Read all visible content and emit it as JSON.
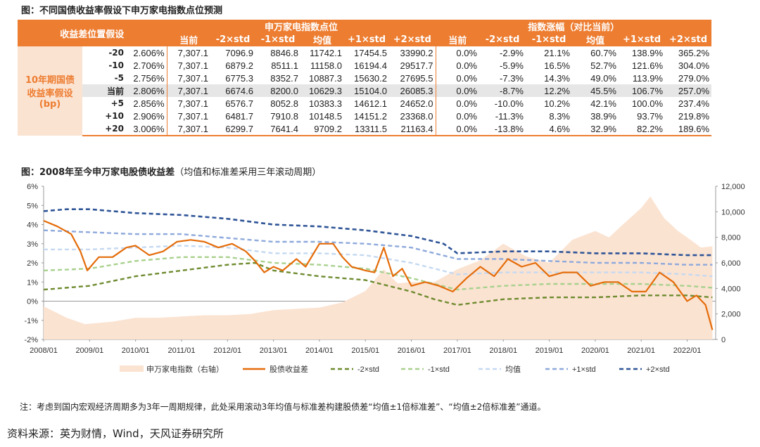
{
  "title1": "图：不同国债收益率假设下申万家电指数点位预测",
  "title2_bold": "图：2008年至今申万家电股债收益差",
  "title2_rest": "（均值和标准差采用三年滚动周期）",
  "table": {
    "corner": "收益差位置假设",
    "group1": "申万家电指数点位",
    "group2": "指数涨幅（对比当前）",
    "row_label": [
      "10年期国债",
      "收益率假设",
      "(bp)"
    ],
    "cols1": [
      "当前",
      "-2×std",
      "-1×std",
      "均值",
      "+1×std",
      "+2×std"
    ],
    "cols2": [
      "当前",
      "-2×std",
      "-1×std",
      "均值",
      "+1×std",
      "+2×std"
    ],
    "rows": [
      {
        "bp": "-20",
        "yield": "2.606%",
        "pts": [
          "7,307.1",
          "7096.9",
          "8846.8",
          "11742.1",
          "17454.5",
          "33990.2"
        ],
        "chg": [
          "0.0%",
          "-2.9%",
          "21.1%",
          "60.7%",
          "138.9%",
          "365.2%"
        ]
      },
      {
        "bp": "-10",
        "yield": "2.706%",
        "pts": [
          "7,307.1",
          "6879.2",
          "8511.1",
          "11158.0",
          "16194.4",
          "29517.7"
        ],
        "chg": [
          "0.0%",
          "-5.9%",
          "16.5%",
          "52.7%",
          "121.6%",
          "304.0%"
        ]
      },
      {
        "bp": "-5",
        "yield": "2.756%",
        "pts": [
          "7,307.1",
          "6775.3",
          "8352.7",
          "10887.3",
          "15630.2",
          "27695.5"
        ],
        "chg": [
          "0.0%",
          "-7.3%",
          "14.3%",
          "49.0%",
          "113.9%",
          "279.0%"
        ]
      },
      {
        "bp": "当前",
        "yield": "2.806%",
        "pts": [
          "7,307.1",
          "6674.6",
          "8200.0",
          "10629.3",
          "15104.0",
          "26085.3"
        ],
        "chg": [
          "0.0%",
          "-8.7%",
          "12.2%",
          "45.5%",
          "106.7%",
          "257.0%"
        ]
      },
      {
        "bp": "+5",
        "yield": "2.856%",
        "pts": [
          "7,307.1",
          "6576.7",
          "8052.8",
          "10383.3",
          "14612.1",
          "24652.0"
        ],
        "chg": [
          "0.0%",
          "-10.0%",
          "10.2%",
          "42.1%",
          "100.0%",
          "237.4%"
        ]
      },
      {
        "bp": "+10",
        "yield": "2.906%",
        "pts": [
          "7,307.1",
          "6481.7",
          "7910.8",
          "10148.5",
          "14151.2",
          "23368.0"
        ],
        "chg": [
          "0.0%",
          "-11.3%",
          "8.3%",
          "38.9%",
          "93.7%",
          "219.8%"
        ]
      },
      {
        "bp": "+20",
        "yield": "3.006%",
        "pts": [
          "7,307.1",
          "6299.7",
          "7641.4",
          "9709.2",
          "13311.5",
          "21163.4"
        ],
        "chg": [
          "0.0%",
          "-13.8%",
          "4.6%",
          "32.9%",
          "82.2%",
          "189.6%"
        ]
      }
    ]
  },
  "chart_data": {
    "type": "line",
    "x_ticks": [
      "2008/01",
      "2009/01",
      "2010/01",
      "2011/01",
      "2012/01",
      "2013/01",
      "2014/01",
      "2015/01",
      "2016/01",
      "2017/01",
      "2018/01",
      "2019/01",
      "2020/01",
      "2021/01",
      "2022/01"
    ],
    "y_left_ticks": [
      "6%",
      "5%",
      "4%",
      "3%",
      "2%",
      "1%",
      "0%",
      "-1%",
      "-2%"
    ],
    "y_right_ticks": [
      "12,000",
      "10,000",
      "8,000",
      "6,000",
      "4,000",
      "2,000",
      "0"
    ],
    "ylim_left": [
      -2,
      6
    ],
    "ylim_right": [
      0,
      12000
    ],
    "legend": [
      "申万家电指数（右轴）",
      "股债收益差",
      "-2×std",
      "-1×std",
      "均值",
      "+1×std",
      "+2×std"
    ],
    "colors": {
      "index": "#FBE3D2",
      "spread": "#E46C0A",
      "m2": "#6E8B2F",
      "m1": "#A9D18E",
      "mean": "#C5D9F1",
      "p1": "#8EA9DB",
      "p2": "#2F5597"
    },
    "series": [
      {
        "name": "申万家电指数（右轴）",
        "axis": "right",
        "x": [
          2008.0,
          2008.5,
          2008.9,
          2009.5,
          2010.0,
          2010.5,
          2011.0,
          2011.5,
          2012.0,
          2012.5,
          2013.0,
          2013.5,
          2014.0,
          2014.5,
          2015.0,
          2015.4,
          2015.7,
          2016.0,
          2016.5,
          2017.0,
          2017.5,
          2018.0,
          2018.5,
          2019.0,
          2019.5,
          2020.0,
          2020.3,
          2020.6,
          2021.0,
          2021.2,
          2021.5,
          2021.8,
          2022.0,
          2022.3,
          2022.55
        ],
        "values": [
          2600,
          1700,
          1200,
          1400,
          1700,
          1700,
          1800,
          1900,
          1900,
          2000,
          2300,
          2400,
          2500,
          2900,
          3800,
          5500,
          4400,
          4500,
          4500,
          5500,
          6200,
          7500,
          6500,
          6000,
          7800,
          8500,
          8000,
          9000,
          10300,
          11200,
          9500,
          8500,
          8000,
          7200,
          7300
        ]
      },
      {
        "name": "股债收益差",
        "axis": "left",
        "x": [
          2008.0,
          2008.3,
          2008.6,
          2008.8,
          2008.95,
          2009.2,
          2009.5,
          2009.8,
          2010.0,
          2010.3,
          2010.6,
          2010.9,
          2011.2,
          2011.5,
          2011.8,
          2012.1,
          2012.4,
          2012.6,
          2012.8,
          2013.0,
          2013.2,
          2013.5,
          2013.7,
          2014.0,
          2014.3,
          2014.5,
          2014.7,
          2015.0,
          2015.2,
          2015.4,
          2015.6,
          2015.8,
          2016.0,
          2016.3,
          2016.6,
          2016.9,
          2017.2,
          2017.5,
          2017.8,
          2018.1,
          2018.4,
          2018.7,
          2019.0,
          2019.3,
          2019.6,
          2019.9,
          2020.2,
          2020.5,
          2020.8,
          2021.1,
          2021.4,
          2021.7,
          2022.0,
          2022.2,
          2022.4,
          2022.55
        ],
        "values": [
          4.2,
          3.9,
          3.5,
          2.6,
          1.6,
          2.3,
          2.3,
          2.8,
          2.9,
          2.4,
          2.6,
          3.1,
          3.2,
          3.1,
          2.8,
          3.0,
          2.6,
          2.1,
          1.5,
          1.8,
          1.6,
          2.2,
          1.8,
          3.0,
          3.0,
          2.3,
          1.8,
          1.6,
          1.5,
          2.8,
          1.3,
          1.7,
          0.8,
          1.0,
          0.8,
          0.5,
          1.2,
          1.8,
          1.3,
          2.2,
          1.8,
          2.0,
          1.3,
          1.5,
          1.5,
          0.8,
          1.0,
          1.0,
          0.5,
          0.5,
          1.5,
          1.0,
          0.0,
          0.3,
          -0.2,
          -1.5
        ]
      },
      {
        "name": "-2×std",
        "axis": "left",
        "x": [
          2008.0,
          2009.0,
          2010.0,
          2011.0,
          2012.0,
          2012.6,
          2013.0,
          2014.0,
          2015.0,
          2016.0,
          2016.5,
          2017.0,
          2018.0,
          2019.0,
          2020.0,
          2021.0,
          2022.0,
          2022.55
        ],
        "values": [
          0.6,
          0.8,
          1.3,
          1.6,
          1.9,
          2.0,
          1.6,
          1.3,
          1.1,
          0.5,
          0.1,
          -0.2,
          0.1,
          0.2,
          0.2,
          0.3,
          0.3,
          0.2
        ]
      },
      {
        "name": "-1×std",
        "axis": "left",
        "x": [
          2008.0,
          2009.0,
          2010.0,
          2011.0,
          2012.0,
          2013.0,
          2014.0,
          2015.0,
          2016.0,
          2017.0,
          2018.0,
          2019.0,
          2020.0,
          2021.0,
          2022.0,
          2022.55
        ],
        "values": [
          1.6,
          1.7,
          2.1,
          2.3,
          2.3,
          2.0,
          1.9,
          1.7,
          1.2,
          0.6,
          0.8,
          0.9,
          0.9,
          0.9,
          0.8,
          0.7
        ]
      },
      {
        "name": "均值",
        "axis": "left",
        "x": [
          2008.0,
          2009.0,
          2010.0,
          2011.0,
          2012.0,
          2013.0,
          2014.0,
          2015.0,
          2016.0,
          2017.0,
          2018.0,
          2019.0,
          2020.0,
          2021.0,
          2022.0,
          2022.55
        ],
        "values": [
          2.7,
          2.7,
          2.8,
          2.9,
          2.8,
          2.5,
          2.5,
          2.4,
          2.0,
          1.4,
          1.5,
          1.5,
          1.5,
          1.5,
          1.4,
          1.3
        ]
      },
      {
        "name": "+1×std",
        "axis": "left",
        "x": [
          2008.0,
          2009.0,
          2010.0,
          2011.0,
          2012.0,
          2013.0,
          2014.0,
          2015.0,
          2016.0,
          2017.0,
          2018.0,
          2019.0,
          2020.0,
          2021.0,
          2022.0,
          2022.55
        ],
        "values": [
          3.7,
          3.6,
          3.5,
          3.5,
          3.3,
          3.1,
          3.1,
          3.0,
          2.8,
          2.2,
          2.2,
          2.1,
          2.0,
          2.0,
          1.9,
          1.9
        ]
      },
      {
        "name": "+2×std",
        "axis": "left",
        "x": [
          2008.0,
          2008.5,
          2009.0,
          2010.0,
          2011.0,
          2012.0,
          2013.0,
          2014.0,
          2015.0,
          2016.0,
          2016.7,
          2017.0,
          2018.0,
          2019.0,
          2020.0,
          2021.0,
          2022.0,
          2022.55
        ],
        "values": [
          4.7,
          4.8,
          4.8,
          4.6,
          4.5,
          4.3,
          4.0,
          3.9,
          3.7,
          3.4,
          3.0,
          2.5,
          2.6,
          2.6,
          2.5,
          2.5,
          2.4,
          2.4
        ]
      }
    ]
  },
  "note": "注：考虑到国内宏观经济周期多为3年一周期规律，此处采用滚动3年均值与标准差构建股债差“均值±1倍标准差”、“均值±2倍标准差”通道。",
  "source": "资料来源：英为财情，Wind，天风证券研究所"
}
